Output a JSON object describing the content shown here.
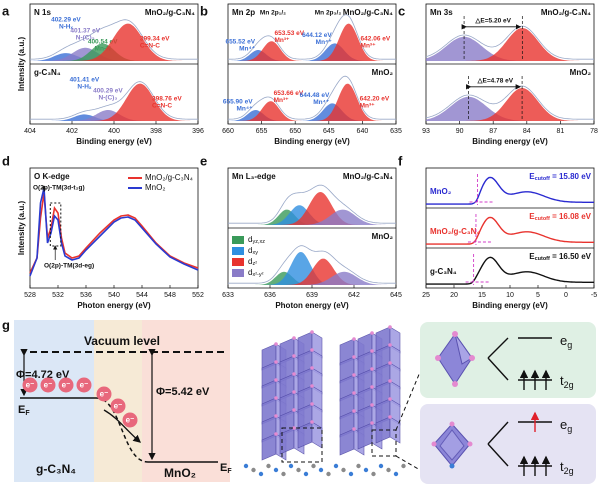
{
  "panels": [
    {
      "label": "a",
      "xlabel": "Binding energy (eV)",
      "ylabel": "Intensity (a.u.)",
      "xlim": [
        404,
        396
      ],
      "xticks": [
        404,
        402,
        400,
        398,
        396
      ],
      "subplots": [
        {
          "title": "N 1s",
          "name": "MnO₂/g-C₃N₄",
          "peaks": [
            {
              "center": 402.29,
              "height": 0.18,
              "width": 0.55,
              "color": "#3b6fd6",
              "label": "402.29 eV",
              "name": "N-Hₓ"
            },
            {
              "center": 401.37,
              "height": 0.3,
              "width": 0.6,
              "color": "#8a7cc8",
              "label": "401.37 eV",
              "name": "N-(C)₃"
            },
            {
              "center": 400.54,
              "height": 0.4,
              "width": 0.55,
              "color": "#3a9a5a",
              "label": "400.54 eV",
              "name": "Mn-N"
            },
            {
              "center": 399.34,
              "height": 0.85,
              "width": 0.7,
              "color": "#e8332e",
              "label": "399.34 eV",
              "name": "C=N-C"
            }
          ]
        },
        {
          "name": "g-C₃N₄",
          "peaks": [
            {
              "center": 401.41,
              "height": 0.15,
              "width": 0.5,
              "color": "#3b6fd6",
              "label": "401.41 eV",
              "name": "N-Hₓ"
            },
            {
              "center": 400.29,
              "height": 0.25,
              "width": 0.55,
              "color": "#8a7cc8",
              "label": "400.29 eV",
              "name": "N-(C)₃"
            },
            {
              "center": 398.76,
              "height": 0.85,
              "width": 0.65,
              "color": "#e8332e",
              "label": "398.76 eV",
              "name": "C=N-C"
            }
          ]
        }
      ]
    },
    {
      "label": "b",
      "xlabel": "Binding energy (eV)",
      "xlim": [
        660,
        635
      ],
      "xticks": [
        660,
        655,
        650,
        645,
        640,
        635
      ],
      "subplots": [
        {
          "title": "Mn 2p",
          "name": "MnO₂/g-C₃N₄",
          "notes": [
            "Mn 2p₁/₂",
            "Mn 2p₃/₂"
          ],
          "peaks": [
            {
              "center": 655.52,
              "height": 0.25,
              "width": 1.2,
              "color": "#3b6fd6",
              "label": "655.52 eV",
              "name": "Mn⁴⁺"
            },
            {
              "center": 653.53,
              "height": 0.45,
              "width": 1.3,
              "color": "#e8332e",
              "label": "653.53 eV",
              "name": "Mn³⁺"
            },
            {
              "center": 644.12,
              "height": 0.4,
              "width": 1.4,
              "color": "#3b6fd6",
              "label": "644.12 eV",
              "name": "Mn⁴⁺"
            },
            {
              "center": 642.06,
              "height": 0.85,
              "width": 1.4,
              "color": "#e8332e",
              "label": "642.06 eV",
              "name": "Mn³⁺"
            }
          ]
        },
        {
          "name": "MnO₂",
          "peaks": [
            {
              "center": 655.9,
              "height": 0.25,
              "width": 1.2,
              "color": "#3b6fd6",
              "label": "655.90 eV",
              "name": "Mn⁴⁺"
            },
            {
              "center": 653.66,
              "height": 0.45,
              "width": 1.3,
              "color": "#e8332e",
              "label": "653.66 eV",
              "name": "Mn³⁺"
            },
            {
              "center": 644.48,
              "height": 0.4,
              "width": 1.4,
              "color": "#3b6fd6",
              "label": "644.48 eV",
              "name": "Mn⁴⁺"
            },
            {
              "center": 642.2,
              "height": 0.85,
              "width": 1.4,
              "color": "#e8332e",
              "label": "642.20 eV",
              "name": "Mn³⁺"
            }
          ]
        }
      ]
    },
    {
      "label": "c",
      "xlabel": "Binding energy (eV)",
      "xlim": [
        93,
        78
      ],
      "xticks": [
        93,
        90,
        87,
        84,
        81,
        78
      ],
      "subplots": [
        {
          "title": "Mn 3s",
          "name": "MnO₂/g-C₃N₄",
          "delta": "△E=5.20 eV",
          "peaks": [
            {
              "center": 89.6,
              "height": 0.55,
              "width": 1.6,
              "color": "#8a7cc8"
            },
            {
              "center": 84.4,
              "height": 0.75,
              "width": 1.4,
              "color": "#e8332e"
            }
          ]
        },
        {
          "name": "MnO₂",
          "delta": "△E=4.78 eV",
          "peaks": [
            {
              "center": 89.2,
              "height": 0.55,
              "width": 1.6,
              "color": "#8a7cc8"
            },
            {
              "center": 84.42,
              "height": 0.75,
              "width": 1.4,
              "color": "#e8332e"
            }
          ]
        }
      ]
    },
    {
      "label": "d",
      "type": "line",
      "title": "O K-edge",
      "xlabel": "Photon energy (eV)",
      "ylabel": "Intensity (a.u.)",
      "xlim": [
        528,
        552
      ],
      "xticks": [
        528,
        532,
        536,
        540,
        544,
        548,
        552
      ],
      "ylim": [
        0,
        1.1
      ],
      "notes": [
        "O(2p)-TM(3d-t₂g)",
        "O(2p)-TM(3d-eg)"
      ],
      "x": [
        528,
        529,
        529.5,
        530,
        530.5,
        531,
        531.5,
        532,
        532.5,
        533,
        534,
        535,
        536,
        538,
        540,
        541,
        542,
        543,
        544,
        546,
        548,
        550,
        552
      ],
      "series": [
        {
          "name": "MnO₂/g-C₃N₄",
          "color": "#e8332e",
          "values": [
            0.15,
            0.3,
            0.7,
            0.95,
            0.5,
            0.6,
            0.8,
            0.75,
            0.5,
            0.35,
            0.3,
            0.32,
            0.4,
            0.55,
            0.68,
            0.72,
            0.73,
            0.7,
            0.62,
            0.45,
            0.32,
            0.25,
            0.2
          ]
        },
        {
          "name": "MnO₂",
          "color": "#2a3ad0",
          "values": [
            0.12,
            0.3,
            0.85,
            1.0,
            0.45,
            0.55,
            0.72,
            0.68,
            0.45,
            0.32,
            0.28,
            0.3,
            0.38,
            0.52,
            0.66,
            0.7,
            0.71,
            0.68,
            0.6,
            0.44,
            0.31,
            0.24,
            0.18
          ]
        }
      ]
    },
    {
      "label": "e",
      "title": "Mn L₃-edge",
      "xlabel": "Photon energy (eV)",
      "xlim": [
        633,
        645
      ],
      "xticks": [
        633,
        636,
        639,
        642,
        645
      ],
      "legend": [
        {
          "t": "d",
          "sub": "yz,xz",
          "color": "#3a9a5a"
        },
        {
          "t": "d",
          "sub": "xy",
          "color": "#2f8fe0"
        },
        {
          "t": "d",
          "sub": "z²",
          "color": "#e8332e"
        },
        {
          "t": "d",
          "sub": "x²-y²",
          "color": "#8a7cc8"
        }
      ],
      "subplots": [
        {
          "name": "MnO₂/g-C₃N₄",
          "peaks": [
            {
              "center": 637.2,
              "height": 0.35,
              "width": 0.6,
              "color": "#3a9a5a"
            },
            {
              "center": 638.1,
              "height": 0.45,
              "width": 0.7,
              "color": "#2f8fe0"
            },
            {
              "center": 639.6,
              "height": 0.75,
              "width": 0.8,
              "color": "#e8332e"
            },
            {
              "center": 641.2,
              "height": 0.35,
              "width": 0.9,
              "color": "#8a7cc8"
            }
          ]
        },
        {
          "name": "MnO₂",
          "peaks": [
            {
              "center": 637.0,
              "height": 0.3,
              "width": 0.6,
              "color": "#3a9a5a"
            },
            {
              "center": 638.2,
              "height": 0.75,
              "width": 0.7,
              "color": "#2f8fe0"
            },
            {
              "center": 639.8,
              "height": 0.6,
              "width": 0.75,
              "color": "#e8332e"
            },
            {
              "center": 641.3,
              "height": 0.3,
              "width": 0.9,
              "color": "#8a7cc8"
            }
          ]
        }
      ]
    },
    {
      "label": "f",
      "xlabel": "Binding energy (eV)",
      "xlim": [
        25,
        -5
      ],
      "xticks": [
        25,
        20,
        15,
        10,
        5,
        0,
        -5
      ],
      "subplots": [
        {
          "name": "MnO₂",
          "color": "#2a2ad0",
          "cutoff": 15.8,
          "cutoff_label": {
            "t": "E",
            "sub": "cutoff",
            "rest": " = 15.80 eV"
          }
        },
        {
          "name": "MnO₂/g-C₃N₄",
          "color": "#e8332e",
          "cutoff": 16.08,
          "cutoff_label": {
            "t": "E",
            "sub": "cutoff",
            "rest": " = 16.08 eV"
          }
        },
        {
          "name": "g-C₃N₄",
          "color": "#111111",
          "cutoff": 16.5,
          "cutoff_label": {
            "t": "E",
            "sub": "cutoff",
            "rest": " = 16.50 eV"
          }
        }
      ]
    }
  ],
  "schematic": {
    "label": "g",
    "vacuum": "Vacuum level",
    "phi_left": "Φ=4.72 eV",
    "phi_right": "Φ=5.42 eV",
    "fermi": {
      "t": "E",
      "sub": "F"
    },
    "electron": "e⁻",
    "left_material": "g-C₃N₄",
    "right_material": "MnO₂",
    "eg": {
      "t": "e",
      "sub": "g"
    },
    "t2g": {
      "t": "t",
      "sub": "2g"
    }
  }
}
